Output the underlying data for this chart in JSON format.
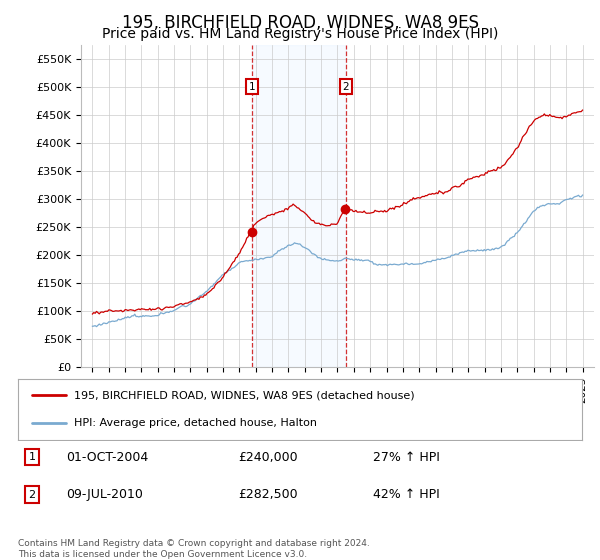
{
  "title": "195, BIRCHFIELD ROAD, WIDNES, WA8 9ES",
  "subtitle": "Price paid vs. HM Land Registry's House Price Index (HPI)",
  "ylim": [
    0,
    575000
  ],
  "yticks": [
    0,
    50000,
    100000,
    150000,
    200000,
    250000,
    300000,
    350000,
    400000,
    450000,
    500000,
    550000
  ],
  "ytick_labels": [
    "£0",
    "£50K",
    "£100K",
    "£150K",
    "£200K",
    "£250K",
    "£300K",
    "£350K",
    "£400K",
    "£450K",
    "£500K",
    "£550K"
  ],
  "sale1_year": 2004.75,
  "sale1_price": 240000,
  "sale1_date_str": "01-OCT-2004",
  "sale1_pct": "27% ↑ HPI",
  "sale2_year": 2010.5,
  "sale2_price": 282500,
  "sale2_date_str": "09-JUL-2010",
  "sale2_pct": "42% ↑ HPI",
  "red_line_color": "#cc0000",
  "blue_line_color": "#7aaad0",
  "legend_line1": "195, BIRCHFIELD ROAD, WIDNES, WA8 9ES (detached house)",
  "legend_line2": "HPI: Average price, detached house, Halton",
  "footer": "Contains HM Land Registry data © Crown copyright and database right 2024.\nThis data is licensed under the Open Government Licence v3.0.",
  "background_color": "#ffffff",
  "grid_color": "#cccccc",
  "shade_color": "#ddeeff",
  "title_fontsize": 12,
  "subtitle_fontsize": 10,
  "tick_fontsize": 8
}
